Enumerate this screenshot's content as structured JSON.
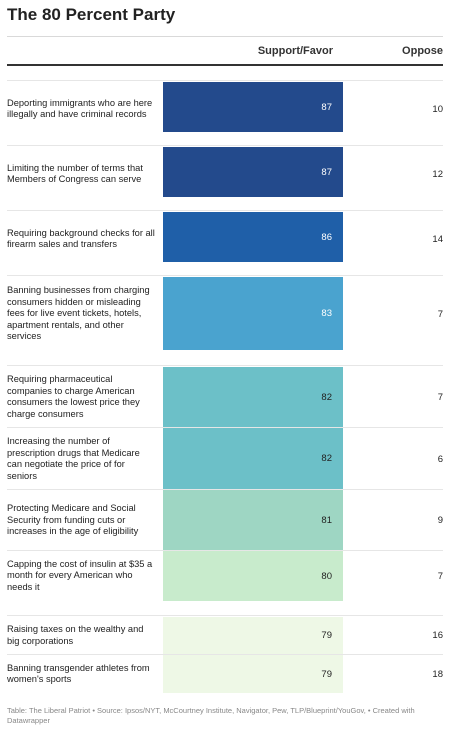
{
  "title": "The 80 Percent Party",
  "columns": {
    "support": "Support/Favor",
    "oppose": "Oppose"
  },
  "footer": "Table: The Liberal Patriot • Source: Ipsos/NYT, McCourtney Institute, Navigator, Pew, TLP/Blueprint/YouGov, • Created with Datawrapper",
  "chart_data": {
    "type": "table",
    "title": "The 80 Percent Party",
    "columns": [
      "Support/Favor",
      "Oppose"
    ],
    "rows": [
      {
        "label": "Deporting immigrants who are here illegally and have criminal records",
        "support": 87,
        "oppose": 10,
        "color": "#234a8c",
        "text_color": "#ffffff"
      },
      {
        "label": "Limiting the number of terms that Members of Congress can serve",
        "support": 87,
        "oppose": 12,
        "color": "#234a8c",
        "text_color": "#ffffff"
      },
      {
        "label": "Requiring background checks for all firearm sales and transfers",
        "support": 86,
        "oppose": 14,
        "color": "#1f5fa8",
        "text_color": "#ffffff"
      },
      {
        "label": "Banning businesses from charging consumers hidden or misleading fees for live event tickets, hotels, apartment rentals, and other services",
        "support": 83,
        "oppose": 7,
        "color": "#4aa3cf",
        "text_color": "#ffffff"
      },
      {
        "label": "Requiring pharmaceutical companies to charge American consumers the lowest price they charge consumers",
        "support": 82,
        "oppose": 7,
        "color": "#6cc0c8",
        "text_color": "#222222"
      },
      {
        "label": "Increasing the number of prescription drugs that Medicare can negotiate the price of for seniors",
        "support": 82,
        "oppose": 6,
        "color": "#6cc0c8",
        "text_color": "#222222"
      },
      {
        "label": "Protecting Medicare and Social Security from funding cuts or increases in the age of eligibility",
        "support": 81,
        "oppose": 9,
        "color": "#9ed6c3",
        "text_color": "#222222"
      },
      {
        "label": "Capping the cost of insulin at $35 a month for every American who needs it",
        "support": 80,
        "oppose": 7,
        "color": "#c8ebcc",
        "text_color": "#222222"
      },
      {
        "label": "Raising taxes on the wealthy and big corporations",
        "support": 79,
        "oppose": 16,
        "color": "#eef8e6",
        "text_color": "#222222"
      },
      {
        "label": "Banning transgender athletes from women's sports",
        "support": 79,
        "oppose": 18,
        "color": "#eef8e6",
        "text_color": "#222222"
      }
    ]
  }
}
